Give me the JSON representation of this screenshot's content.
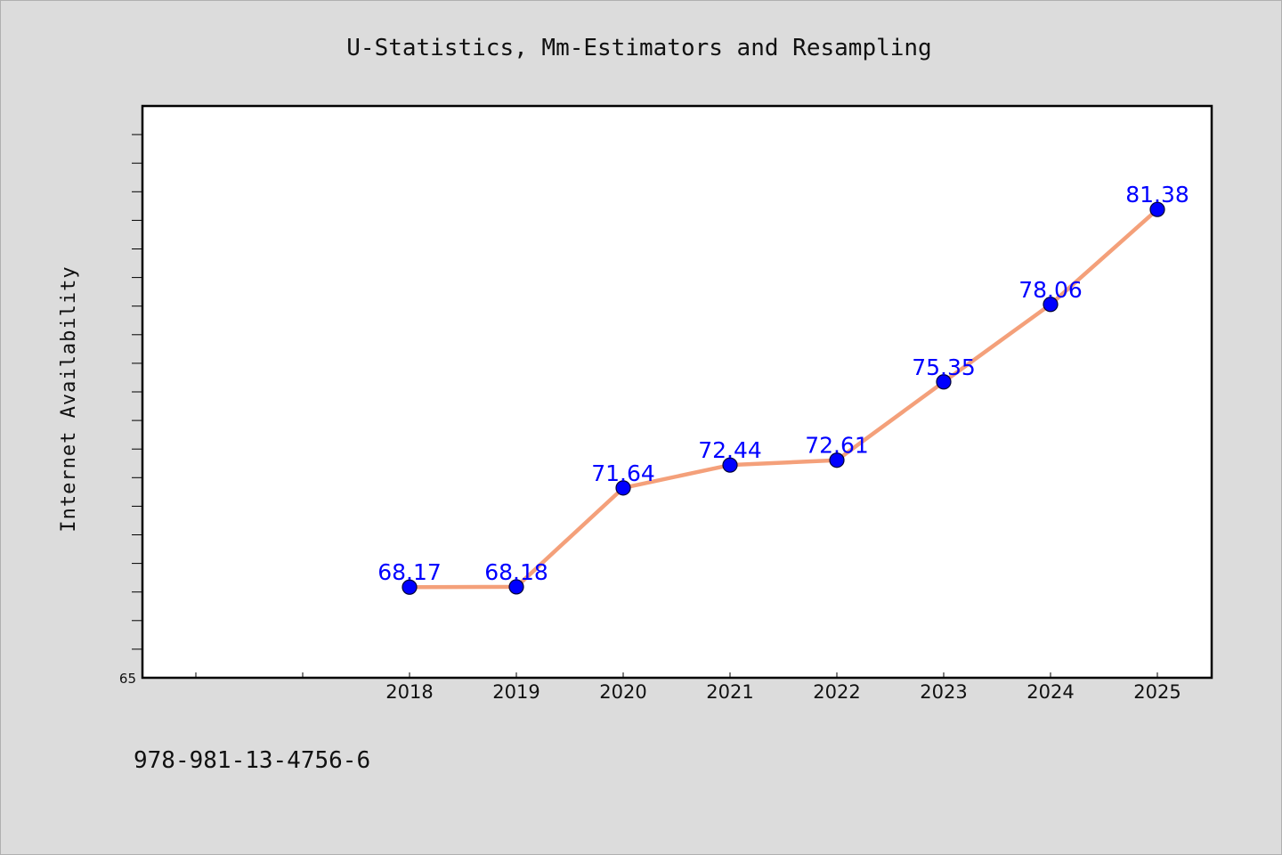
{
  "chart_data": {
    "type": "line",
    "title": "U-Statistics, Mm-Estimators and Resampling",
    "ylabel": "Internet Availability",
    "xlabel": "",
    "categories": [
      "2018",
      "2019",
      "2020",
      "2021",
      "2022",
      "2023",
      "2024",
      "2025"
    ],
    "series": [
      {
        "values": [
          68.17,
          68.18,
          71.64,
          72.44,
          72.61,
          75.35,
          78.06,
          81.38
        ],
        "labels": [
          "68.17",
          "68.18",
          "71.64",
          "72.44",
          "72.61",
          "75.35",
          "78.06",
          "81.38"
        ]
      }
    ],
    "y_tick_labels": [
      "65"
    ],
    "ylim": [
      65,
      85
    ],
    "grid": false,
    "legend": false,
    "colors": {
      "line": "#f4a07a",
      "marker": "#0000ff",
      "label": "#0000ff"
    }
  },
  "footer": {
    "isbn": "978-981-13-4756-6"
  }
}
